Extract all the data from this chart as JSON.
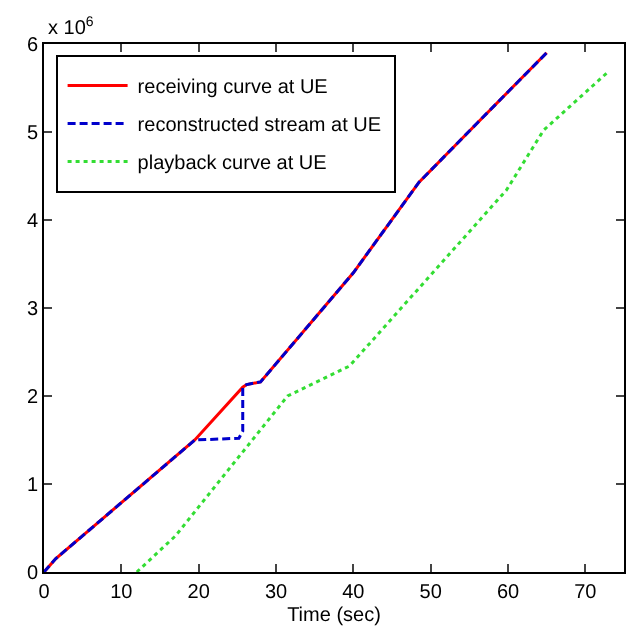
{
  "chart_data": {
    "type": "line",
    "xlabel": "Time (sec)",
    "annotations": [
      "x 10$^{6}$"
    ],
    "xlim": [
      0,
      75
    ],
    "xticks": [
      0,
      10,
      20,
      30,
      40,
      50,
      60,
      70
    ],
    "ylim": [
      0,
      6
    ],
    "yticks": [
      0,
      1,
      2,
      3,
      4,
      5,
      6
    ],
    "legend": "top left",
    "marker": "none",
    "series": [
      {
        "name": "receiving curve at UE",
        "color": "#ff0000",
        "line_style": "solid",
        "x": [
          0,
          1,
          1.5,
          19.5,
          25.7,
          26.2,
          28,
          40,
          48.5,
          56,
          65
        ],
        "values": [
          0,
          0.1,
          0.15,
          1.5,
          2.1,
          2.13,
          2.16,
          3.4,
          4.43,
          5.1,
          5.9
        ]
      },
      {
        "name": "reconstructed stream at UE",
        "color": "#0000cc",
        "line_style": "dashed",
        "x": [
          0,
          1,
          1.5,
          19.5,
          25.2,
          25.7,
          25.7,
          26.2,
          28,
          40,
          48.5,
          56,
          65
        ],
        "values": [
          0,
          0.1,
          0.15,
          1.5,
          1.52,
          1.6,
          2.1,
          2.13,
          2.16,
          3.4,
          4.43,
          5.1,
          5.9
        ]
      },
      {
        "name": "playback curve at UE",
        "color": "#33dd33",
        "line_style": "dotted",
        "x": [
          12,
          17,
          20,
          31.5,
          39.5,
          59.8,
          64.6,
          72.9
        ],
        "values": [
          0,
          0.41,
          0.74,
          2.0,
          2.34,
          4.34,
          5.02,
          5.68
        ]
      }
    ]
  }
}
